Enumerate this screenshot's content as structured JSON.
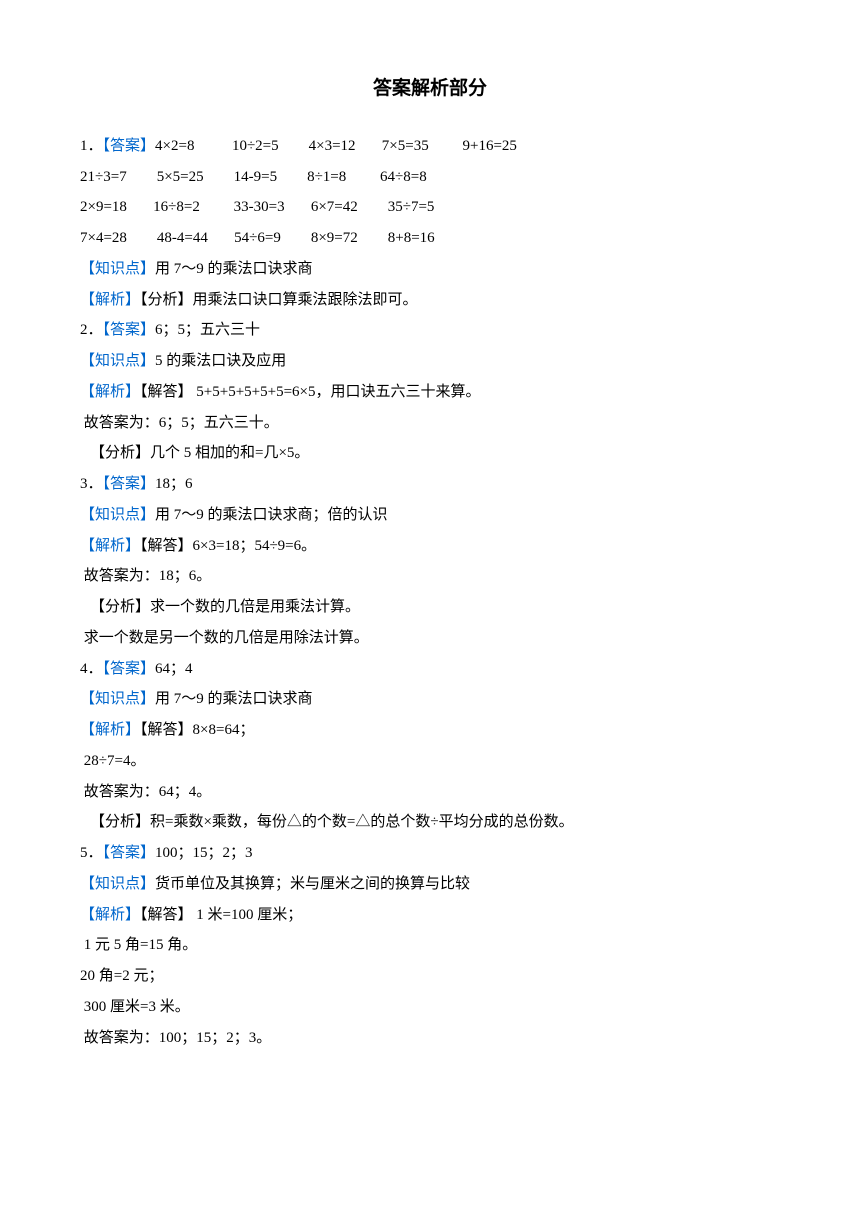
{
  "title": "答案解析部分",
  "colors": {
    "blue": "#0066cc",
    "black": "#000000",
    "bg": "#ffffff"
  },
  "font": {
    "body_size": 15,
    "title_size": 19,
    "line_height": 2.05
  },
  "labels": {
    "answer": "【答案】",
    "knowledge": "【知识点】",
    "analysis": "【解析】"
  },
  "q1": {
    "num": "1．",
    "row1": "4×2=8          10÷2=5        4×3=12       7×5=35         9+16=25",
    "row2": "21÷3=7        5×5=25        14-9=5        8÷1=8         64÷8=8",
    "row3": "2×9=18       16÷8=2         33-30=3       6×7=42        35÷7=5",
    "row4": "7×4=28        48-4=44       54÷6=9        8×9=72        8+8=16",
    "kp": "用 7～9 的乘法口诀求商",
    "ana_pre": "【分析】",
    "ana": "用乘法口诀口算乘法跟除法即可。"
  },
  "q2": {
    "num": "2．",
    "ans": "6；5；五六三十",
    "kp": "5 的乘法口诀及应用",
    "sol_pre": "【解答】 ",
    "sol": "5+5+5+5+5+5=6×5，用口诀五六三十来算。",
    "ans_line": " 故答案为：6；5；五六三十。",
    "fx_pre": "【分析】",
    "fx": "几个 5 相加的和=几×5。"
  },
  "q3": {
    "num": "3．",
    "ans": "18；6",
    "kp": "用 7～9 的乘法口诀求商；倍的认识",
    "sol_pre": "【解答】",
    "sol": "6×3=18；54÷9=6。",
    "ans_line": " 故答案为：18；6。",
    "fx_pre": "【分析】",
    "fx": "求一个数的几倍是用乘法计算。",
    "fx2": " 求一个数是另一个数的几倍是用除法计算。"
  },
  "q4": {
    "num": "4．",
    "ans": "64；4",
    "kp": "用 7～9 的乘法口诀求商",
    "sol_pre": "【解答】",
    "sol": "8×8=64；",
    "sol2": " 28÷7=4。",
    "ans_line": " 故答案为：64；4。",
    "fx_pre": "【分析】",
    "fx": "积=乘数×乘数，每份△的个数=△的总个数÷平均分成的总份数。"
  },
  "q5": {
    "num": "5．",
    "ans": "100；15；2；3",
    "kp": "货币单位及其换算；米与厘米之间的换算与比较",
    "sol_pre": "【解答】 ",
    "sol": "1 米=100 厘米；",
    "l1": " 1 元 5 角=15 角。",
    "l2": "20 角=2 元；",
    "l3": " 300 厘米=3 米。",
    "ans_line": " 故答案为：100；15；2；3。"
  }
}
